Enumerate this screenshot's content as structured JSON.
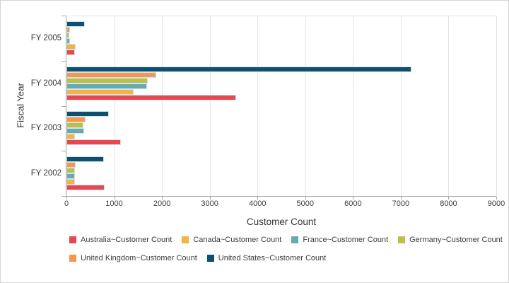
{
  "window": {
    "background": "#ffffff",
    "border_color": "#d4d4d4"
  },
  "chart_data": {
    "type": "bar",
    "orientation": "horizontal",
    "title": "",
    "xlabel": "Customer Count",
    "ylabel": "Fiscal Year",
    "xlim": [
      0,
      9000
    ],
    "x_ticks": [
      0,
      1000,
      2000,
      3000,
      4000,
      5000,
      6000,
      7000,
      8000,
      9000
    ],
    "grid": "vertical-only",
    "legend_position": "bottom-left",
    "legend_rows": 2,
    "categories": [
      "FY 2005",
      "FY 2004",
      "FY 2003",
      "FY 2002"
    ],
    "bar_order_top_to_bottom": [
      "United States",
      "United Kingdom",
      "Germany",
      "France",
      "Canada",
      "Australia"
    ],
    "series": [
      {
        "country": "Australia",
        "label": "Australia~Customer Count",
        "color": "#e8474f",
        "values": [
          180,
          3550,
          1135,
          795
        ]
      },
      {
        "country": "Canada",
        "label": "Canada~Customer Count",
        "color": "#f4b240",
        "values": [
          195,
          1410,
          180,
          175
        ]
      },
      {
        "country": "France",
        "label": "France~Customer Count",
        "color": "#68aaad",
        "values": [
          70,
          1690,
          375,
          175
        ]
      },
      {
        "country": "Germany",
        "label": "Germany~Customer Count",
        "color": "#bcc04b",
        "values": [
          65,
          1700,
          350,
          180
        ]
      },
      {
        "country": "United Kingdom",
        "label": "United Kingdom~Customer Count",
        "color": "#fa9648",
        "values": [
          80,
          1880,
          405,
          195
        ]
      },
      {
        "country": "United States",
        "label": "United States~Customer Count",
        "color": "#10506f",
        "values": [
          380,
          7220,
          885,
          780
        ]
      }
    ],
    "colors": {
      "gridline": "#e4e4e4",
      "axis_line": "#a6a6a6",
      "bar_border": "#cfe2ee",
      "text": "#383838"
    }
  }
}
